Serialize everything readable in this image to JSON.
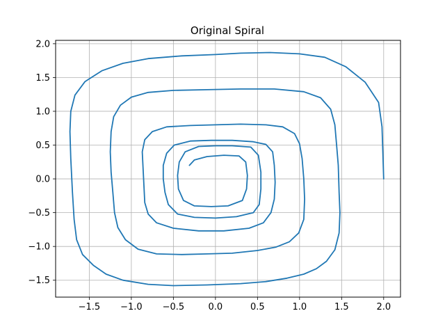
{
  "chart_data": {
    "type": "line",
    "title": "Original Spiral",
    "xlabel": "",
    "ylabel": "",
    "xlim": [
      -1.9,
      2.2
    ],
    "ylim": [
      -1.75,
      2.05
    ],
    "x_ticks": [
      -1.5,
      -1.0,
      -0.5,
      0.0,
      0.5,
      1.0,
      1.5,
      2.0
    ],
    "x_tick_labels": [
      "−1.5",
      "−1.0",
      "−0.5",
      "0.0",
      "0.5",
      "1.0",
      "1.5",
      "2.0"
    ],
    "y_ticks": [
      -1.5,
      -1.0,
      -0.5,
      0.0,
      0.5,
      1.0,
      1.5,
      2.0
    ],
    "y_tick_labels": [
      "−1.5",
      "−1.0",
      "−0.5",
      "0.0",
      "0.5",
      "1.0",
      "1.5",
      "2.0"
    ],
    "grid": true,
    "series": [
      {
        "color": "#1f77b4",
        "points": [
          [
            2.0,
            0.0
          ],
          [
            1.99,
            0.4
          ],
          [
            1.98,
            0.77
          ],
          [
            1.94,
            1.13
          ],
          [
            1.78,
            1.43
          ],
          [
            1.55,
            1.66
          ],
          [
            1.3,
            1.8
          ],
          [
            1.0,
            1.85
          ],
          [
            0.65,
            1.87
          ],
          [
            0.3,
            1.86
          ],
          [
            0.0,
            1.84
          ],
          [
            -0.4,
            1.82
          ],
          [
            -0.8,
            1.78
          ],
          [
            -1.1,
            1.71
          ],
          [
            -1.35,
            1.6
          ],
          [
            -1.55,
            1.44
          ],
          [
            -1.67,
            1.24
          ],
          [
            -1.72,
            1.0
          ],
          [
            -1.73,
            0.7
          ],
          [
            -1.72,
            0.3
          ],
          [
            -1.7,
            -0.2
          ],
          [
            -1.68,
            -0.6
          ],
          [
            -1.65,
            -0.9
          ],
          [
            -1.58,
            -1.12
          ],
          [
            -1.45,
            -1.28
          ],
          [
            -1.3,
            -1.41
          ],
          [
            -1.1,
            -1.5
          ],
          [
            -0.8,
            -1.56
          ],
          [
            -0.5,
            -1.58
          ],
          [
            -0.1,
            -1.57
          ],
          [
            0.3,
            -1.55
          ],
          [
            0.6,
            -1.52
          ],
          [
            0.85,
            -1.47
          ],
          [
            1.05,
            -1.41
          ],
          [
            1.2,
            -1.33
          ],
          [
            1.32,
            -1.22
          ],
          [
            1.42,
            -1.05
          ],
          [
            1.47,
            -0.8
          ],
          [
            1.48,
            -0.5
          ],
          [
            1.47,
            -0.2
          ],
          [
            1.46,
            0.2
          ],
          [
            1.44,
            0.5
          ],
          [
            1.42,
            0.8
          ],
          [
            1.37,
            1.03
          ],
          [
            1.25,
            1.2
          ],
          [
            1.05,
            1.29
          ],
          [
            0.7,
            1.33
          ],
          [
            0.3,
            1.33
          ],
          [
            -0.1,
            1.32
          ],
          [
            -0.5,
            1.31
          ],
          [
            -0.8,
            1.28
          ],
          [
            -1.0,
            1.21
          ],
          [
            -1.13,
            1.09
          ],
          [
            -1.21,
            0.92
          ],
          [
            -1.24,
            0.7
          ],
          [
            -1.25,
            0.4
          ],
          [
            -1.24,
            0.1
          ],
          [
            -1.22,
            -0.2
          ],
          [
            -1.2,
            -0.5
          ],
          [
            -1.16,
            -0.72
          ],
          [
            -1.07,
            -0.9
          ],
          [
            -0.92,
            -1.04
          ],
          [
            -0.7,
            -1.11
          ],
          [
            -0.4,
            -1.12
          ],
          [
            -0.1,
            -1.11
          ],
          [
            0.2,
            -1.1
          ],
          [
            0.5,
            -1.06
          ],
          [
            0.72,
            -1.01
          ],
          [
            0.88,
            -0.93
          ],
          [
            0.99,
            -0.8
          ],
          [
            1.05,
            -0.6
          ],
          [
            1.06,
            -0.3
          ],
          [
            1.05,
            0.0
          ],
          [
            1.03,
            0.3
          ],
          [
            1.0,
            0.52
          ],
          [
            0.94,
            0.67
          ],
          [
            0.8,
            0.77
          ],
          [
            0.6,
            0.8
          ],
          [
            0.3,
            0.81
          ],
          [
            0.0,
            0.8
          ],
          [
            -0.3,
            0.79
          ],
          [
            -0.58,
            0.77
          ],
          [
            -0.75,
            0.7
          ],
          [
            -0.84,
            0.58
          ],
          [
            -0.87,
            0.4
          ],
          [
            -0.86,
            0.15
          ],
          [
            -0.85,
            -0.1
          ],
          [
            -0.84,
            -0.35
          ],
          [
            -0.8,
            -0.52
          ],
          [
            -0.7,
            -0.65
          ],
          [
            -0.5,
            -0.73
          ],
          [
            -0.2,
            -0.77
          ],
          [
            0.1,
            -0.77
          ],
          [
            0.4,
            -0.73
          ],
          [
            0.57,
            -0.65
          ],
          [
            0.66,
            -0.5
          ],
          [
            0.7,
            -0.3
          ],
          [
            0.71,
            -0.05
          ],
          [
            0.7,
            0.2
          ],
          [
            0.68,
            0.4
          ],
          [
            0.6,
            0.51
          ],
          [
            0.45,
            0.55
          ],
          [
            0.2,
            0.57
          ],
          [
            -0.05,
            0.57
          ],
          [
            -0.3,
            0.56
          ],
          [
            -0.49,
            0.5
          ],
          [
            -0.58,
            0.38
          ],
          [
            -0.62,
            0.2
          ],
          [
            -0.62,
            0.0
          ],
          [
            -0.6,
            -0.2
          ],
          [
            -0.56,
            -0.38
          ],
          [
            -0.45,
            -0.52
          ],
          [
            -0.25,
            -0.57
          ],
          [
            0.0,
            -0.58
          ],
          [
            0.25,
            -0.56
          ],
          [
            0.45,
            -0.5
          ],
          [
            0.52,
            -0.38
          ],
          [
            0.54,
            -0.15
          ],
          [
            0.54,
            0.1
          ],
          [
            0.51,
            0.35
          ],
          [
            0.42,
            0.47
          ],
          [
            0.2,
            0.49
          ],
          [
            0.0,
            0.49
          ],
          [
            -0.2,
            0.48
          ],
          [
            -0.36,
            0.4
          ],
          [
            -0.43,
            0.25
          ],
          [
            -0.45,
            0.05
          ],
          [
            -0.44,
            -0.15
          ],
          [
            -0.38,
            -0.32
          ],
          [
            -0.25,
            -0.4
          ],
          [
            -0.05,
            -0.41
          ],
          [
            0.15,
            -0.4
          ],
          [
            0.32,
            -0.32
          ],
          [
            0.37,
            -0.15
          ],
          [
            0.38,
            0.05
          ],
          [
            0.36,
            0.25
          ],
          [
            0.28,
            0.34
          ],
          [
            0.1,
            0.35
          ],
          [
            -0.1,
            0.33
          ],
          [
            -0.25,
            0.28
          ],
          [
            -0.31,
            0.2
          ]
        ]
      }
    ]
  }
}
